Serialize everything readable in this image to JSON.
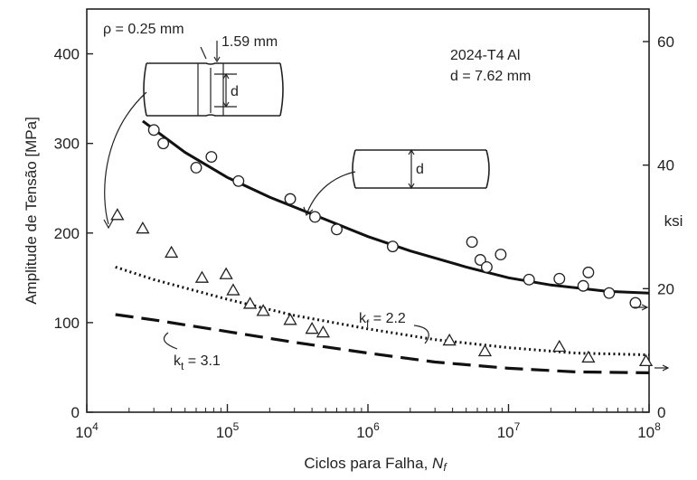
{
  "chart_data": {
    "type": "scatter",
    "xlabel": "Ciclos para Falha, ",
    "xlabel_var": "N",
    "xlabel_sub": "f",
    "ylabel": "Amplitude de Tensão [MPa]",
    "ylabel_right": "ksi",
    "x_scale": "log",
    "xlim": [
      10000,
      100000000
    ],
    "ylim": [
      0,
      450
    ],
    "yticks": [
      0,
      100,
      200,
      300,
      400
    ],
    "xticks": [
      {
        "base": "10",
        "exp": "4",
        "value": 10000
      },
      {
        "base": "10",
        "exp": "5",
        "value": 100000
      },
      {
        "base": "10",
        "exp": "6",
        "value": 1000000
      },
      {
        "base": "10",
        "exp": "7",
        "value": 10000000
      },
      {
        "base": "10",
        "exp": "8",
        "value": 100000000
      }
    ],
    "yticks_right": [
      {
        "label": "0",
        "mpa": 0
      },
      {
        "label": "20",
        "mpa": 137.9
      },
      {
        "label": "40",
        "mpa": 275.8
      },
      {
        "label": "60",
        "mpa": 413.7
      }
    ],
    "material_label": "2024-T4 Al",
    "diameter_label": "d = 7.62 mm",
    "notch_radius_label": "ρ = 0.25 mm",
    "notch_depth_label": "1.59 mm",
    "d_label": "d",
    "kf_label": {
      "k": "k",
      "sub": "f",
      "val": " = 2.2"
    },
    "kt_label": {
      "k": "k",
      "sub": "t",
      "val": " = 3.1"
    },
    "series": [
      {
        "marker": "circle",
        "points": [
          [
            30000,
            315
          ],
          [
            35000,
            300
          ],
          [
            60000,
            273
          ],
          [
            77000,
            285
          ],
          [
            120000,
            258
          ],
          [
            280000,
            238
          ],
          [
            420000,
            218
          ],
          [
            600000,
            204
          ],
          [
            1500000,
            185
          ],
          [
            5500000,
            190
          ],
          [
            6300000,
            170
          ],
          [
            7000000,
            162
          ],
          [
            8800000,
            176
          ],
          [
            14000000,
            148
          ],
          [
            23000000,
            149
          ],
          [
            34000000,
            141
          ],
          [
            37000000,
            156
          ],
          [
            52000000,
            133
          ],
          [
            80000000,
            122
          ]
        ]
      },
      {
        "marker": "triangle",
        "points": [
          [
            16500,
            220
          ],
          [
            25000,
            205
          ],
          [
            40000,
            178
          ],
          [
            66000,
            150
          ],
          [
            98000,
            154
          ],
          [
            110000,
            136
          ],
          [
            145000,
            121
          ],
          [
            180000,
            113
          ],
          [
            280000,
            103
          ],
          [
            400000,
            93
          ],
          [
            480000,
            89
          ],
          [
            3800000,
            80
          ],
          [
            6800000,
            68
          ],
          [
            23000000,
            73
          ],
          [
            37000000,
            61
          ],
          [
            95000000,
            57
          ]
        ]
      }
    ],
    "curves": [
      {
        "style": "solid",
        "points": [
          [
            25000,
            325
          ],
          [
            50000,
            290
          ],
          [
            100000,
            262
          ],
          [
            200000,
            240
          ],
          [
            500000,
            215
          ],
          [
            1000000,
            196
          ],
          [
            2000000,
            180
          ],
          [
            5000000,
            162
          ],
          [
            10000000,
            150
          ],
          [
            20000000,
            142
          ],
          [
            50000000,
            135
          ],
          [
            100000000,
            133
          ]
        ]
      },
      {
        "style": "dotted",
        "points": [
          [
            16000,
            162
          ],
          [
            30000,
            148
          ],
          [
            100000,
            126
          ],
          [
            300000,
            108
          ],
          [
            1000000,
            93
          ],
          [
            3000000,
            81
          ],
          [
            10000000,
            72
          ],
          [
            30000000,
            66
          ],
          [
            100000000,
            64
          ]
        ]
      },
      {
        "style": "dashed",
        "points": [
          [
            16000,
            109
          ],
          [
            30000,
            103
          ],
          [
            100000,
            90
          ],
          [
            300000,
            78
          ],
          [
            1000000,
            66
          ],
          [
            3000000,
            56
          ],
          [
            10000000,
            49
          ],
          [
            30000000,
            45
          ],
          [
            100000000,
            44
          ]
        ]
      }
    ]
  }
}
